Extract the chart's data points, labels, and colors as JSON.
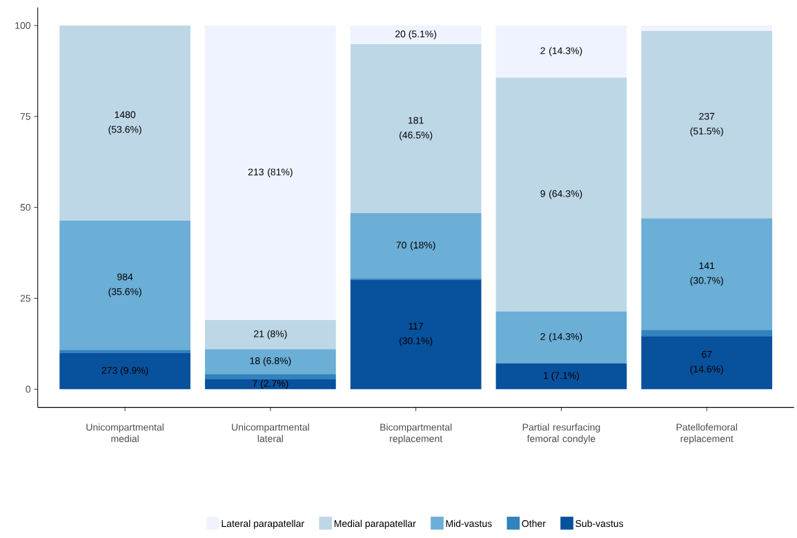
{
  "chart_data": {
    "type": "bar",
    "stacked": true,
    "categories": [
      "Unicompartmental medial",
      "Unicompartmental lateral",
      "Bicompartmental replacement",
      "Partial resurfacing femoral condyle",
      "Patellofemoral replacement"
    ],
    "series": [
      {
        "name": "Sub-vastus",
        "color": "#08519c",
        "values": [
          9.9,
          2.7,
          30.1,
          7.1,
          14.6
        ],
        "value_labels": [
          "273 (9.9%)",
          "7 (2.7%)",
          "117 (30.1%)",
          "1 (7.1%)",
          "67 (14.6%)"
        ]
      },
      {
        "name": "Other",
        "color": "#3182bd",
        "values": [
          0.9,
          1.5,
          0.3,
          0,
          1.7
        ],
        "value_labels": [
          null,
          null,
          null,
          null,
          null
        ]
      },
      {
        "name": "Mid-vastus",
        "color": "#6baed6",
        "values": [
          35.6,
          6.8,
          18,
          14.3,
          30.7
        ],
        "value_labels": [
          "984 (35.6%)",
          "18 (6.8%)",
          "70 (18%)",
          "2 (14.3%)",
          "141 (30.7%)"
        ]
      },
      {
        "name": "Medial parapatellar",
        "color": "#bdd7e7",
        "values": [
          53.6,
          8,
          46.5,
          64.3,
          51.5
        ],
        "value_labels": [
          "1480 (53.6%)",
          "21 (8%)",
          "181 (46.5%)",
          "9 (64.3%)",
          "237 (51.5%)"
        ]
      },
      {
        "name": "Lateral parapatellar",
        "color": "#eff3ff",
        "values": [
          0,
          81,
          5.1,
          14.3,
          1.5
        ],
        "value_labels": [
          null,
          "213 (81%)",
          "20 (5.1%)",
          "2 (14.3%)",
          null
        ]
      }
    ],
    "ylim": [
      -5,
      105
    ],
    "yticks": [
      0,
      25,
      50,
      75,
      100
    ],
    "grid": false,
    "legend": "bottom"
  }
}
